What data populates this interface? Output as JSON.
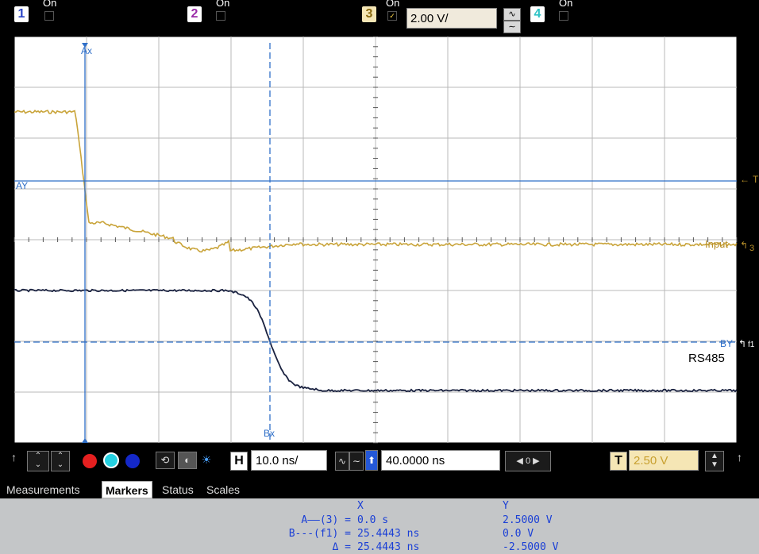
{
  "channels": [
    {
      "num": "1",
      "state": "On",
      "color": "#2a44c8",
      "bg": "#ffffff"
    },
    {
      "num": "2",
      "state": "On",
      "color": "#9b2aa8",
      "bg": "#ffffff"
    },
    {
      "num": "3",
      "state": "On",
      "color": "#c8a030",
      "bg": "#f5e6b5",
      "scale": "2.00 V/",
      "checked": "✓"
    },
    {
      "num": "4",
      "state": "On",
      "color": "#2fc3c6",
      "bg": "#ffffff"
    }
  ],
  "markers": {
    "ax": "Ax",
    "ay": "AY",
    "bx": "Bx",
    "by": "BY",
    "trigger": "T"
  },
  "traces": {
    "input_label": "Input",
    "input_ch": "3",
    "rs485_label": "RS485",
    "f1_label": "f1",
    "input_color": "#c9a43a",
    "rs485_color": "#1a2240"
  },
  "controls": {
    "h_label": "H",
    "timebase": "10.0 ns/",
    "delay": "40.0000 ns",
    "zero": "0",
    "t_label": "T",
    "trigger_level": "2.50 V"
  },
  "tabs": [
    {
      "label": "Measurements",
      "active": false
    },
    {
      "label": "Markers",
      "active": true
    },
    {
      "label": "Status",
      "active": false
    },
    {
      "label": "Scales",
      "active": false
    }
  ],
  "readout": {
    "col_x": "X",
    "col_y": "Y",
    "rows": [
      {
        "name": "A——(3) =",
        "x": "0.0 s",
        "y": "2.5000 V"
      },
      {
        "name": "B---(f1) =",
        "x": "25.4443 ns",
        "y": "0.0 V"
      },
      {
        "name": "Δ =",
        "x": "25.4443 ns",
        "y": "-2.5000 V"
      }
    ]
  }
}
